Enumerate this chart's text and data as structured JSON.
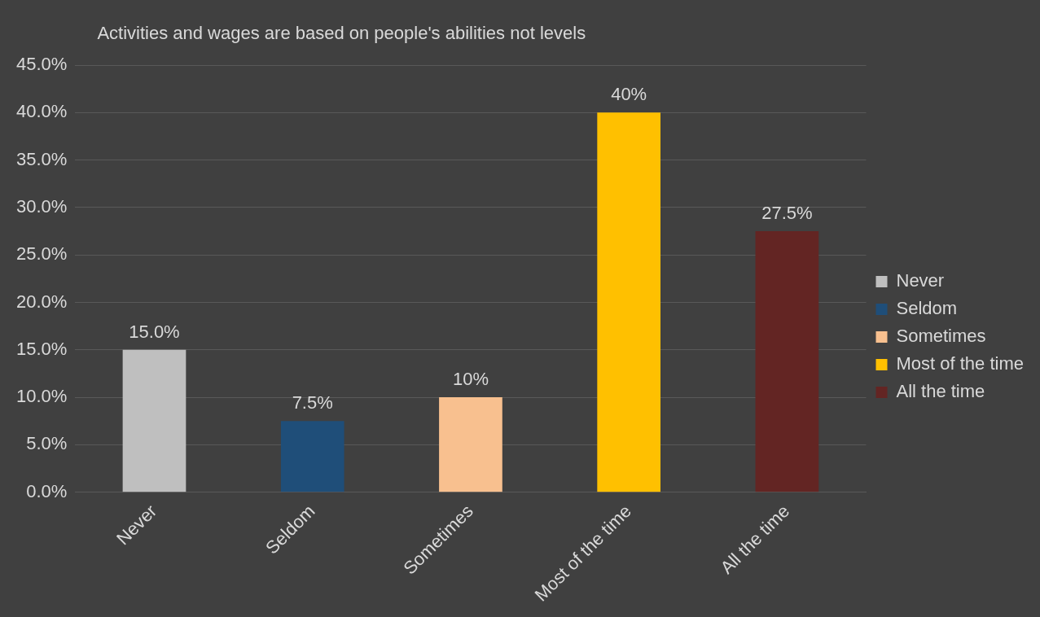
{
  "chart_data": {
    "type": "bar",
    "title": "Activities and wages are based on people's abilities not levels",
    "categories": [
      "Never",
      "Seldom",
      "Sometimes",
      "Most of the time",
      "All the time"
    ],
    "series": [
      {
        "name": "Never",
        "color": "#bfbfbf",
        "values": [
          15,
          null,
          null,
          null,
          null
        ],
        "value_labels": [
          "15.0%",
          null,
          null,
          null,
          null
        ]
      },
      {
        "name": "Seldom",
        "color": "#1f4e79",
        "values": [
          null,
          7.5,
          null,
          null,
          null
        ],
        "value_labels": [
          null,
          "7.5%",
          null,
          null,
          null
        ]
      },
      {
        "name": "Sometimes",
        "color": "#f8c08f",
        "values": [
          null,
          null,
          10,
          null,
          null
        ],
        "value_labels": [
          null,
          null,
          "10%",
          null,
          null
        ]
      },
      {
        "name": "Most of the time",
        "color": "#ffc000",
        "values": [
          null,
          null,
          null,
          40,
          null
        ],
        "value_labels": [
          null,
          null,
          null,
          "40%",
          null
        ]
      },
      {
        "name": "All the time",
        "color": "#632523",
        "values": [
          null,
          null,
          null,
          null,
          27.5
        ],
        "value_labels": [
          null,
          null,
          null,
          null,
          "27.5%"
        ]
      }
    ],
    "stacked": true,
    "ylim": [
      0,
      45
    ],
    "yticks": [
      {
        "value": 0,
        "label": "0.0%"
      },
      {
        "value": 5,
        "label": "5.0%"
      },
      {
        "value": 10,
        "label": "10.0%"
      },
      {
        "value": 15,
        "label": "15.0%"
      },
      {
        "value": 20,
        "label": "20.0%"
      },
      {
        "value": 25,
        "label": "25.0%"
      },
      {
        "value": 30,
        "label": "30.0%"
      },
      {
        "value": 35,
        "label": "35.0%"
      },
      {
        "value": 40,
        "label": "40.0%"
      },
      {
        "value": 45,
        "label": "45.0%"
      }
    ],
    "grid": "y",
    "legend": "right"
  }
}
